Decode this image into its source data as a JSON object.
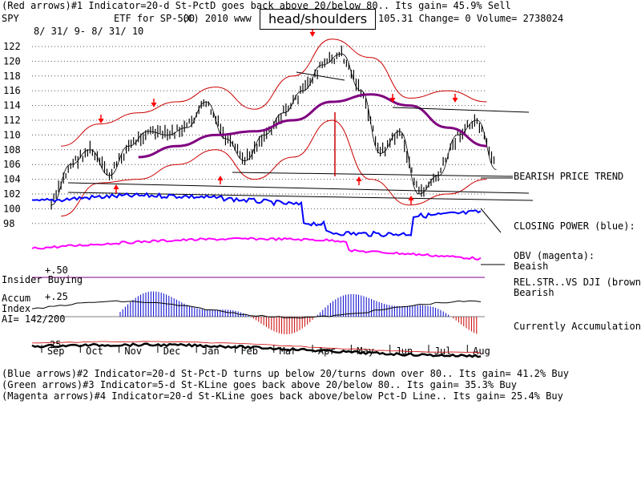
{
  "header": {
    "line1": "(Red arrows)#1 Indicator=20-d St-PctD goes back above 20/below 80.. Its gain= 45.9% Sell",
    "ticker": "SPY",
    "etf": "ETF for SP-500",
    "copyright": "(C) 2010 www",
    "quote": "105.31  Change= 0 Volume= 2738024",
    "dates": "8/ 31/ 9- 8/ 31/ 10",
    "callout": "head/shoulders"
  },
  "right_labels": {
    "trend": "BEARISH PRICE TREND",
    "cp": "CLOSING POWER (blue):",
    "obv_title": "OBV (magenta):",
    "obv_value": "Beaish",
    "rel_title": "REL.STR..VS DJI (brown):",
    "rel_value": "Bearish",
    "accum": "Currently Accumulation"
  },
  "left_labels": {
    "insider": "Insider Buying",
    "p50": "+.50",
    "p25": "+.25",
    "accum1": "Accum",
    "accum2": "Index",
    "ai": "AI= 142/200",
    "rs25": "25"
  },
  "footer": {
    "line1": "(Blue arrows)#2 Indicator=20-d St-Pct-D turns up below 20/turns down over 80.. Its gain= 41.2% Buy",
    "line2": "(Green arrows)#3 Indicator=5-d St-KLine goes back above 20/below 80.. Its gain= 35.3% Buy",
    "line3": "(Magenta arrows)#4 Indicator=20-d St-KLine goes back above/below Pct-D Line.. Its gain= 25.4% Buy"
  },
  "chart_data": {
    "type": "line",
    "title": "SPY",
    "xlabel": "",
    "ylabel": "",
    "ylim": [
      98,
      123
    ],
    "yticks": [
      122,
      120,
      118,
      116,
      114,
      112,
      110,
      108,
      106,
      104,
      102,
      100,
      98
    ],
    "xticks": [
      "Sep",
      "Oct",
      "Nov",
      "Dec",
      "Jan",
      "Feb",
      "Mar",
      "Apr",
      "May",
      "Jun",
      "Jul",
      "Aug"
    ],
    "grid": true,
    "colors": {
      "price": "#000000",
      "bands": "#cc0000",
      "ma": "#800080",
      "closing_power": "#0000ff",
      "obv": "#ff00ff",
      "accum_pos": "#0000cc",
      "accum_neg": "#cc0000",
      "rel_strength": "#000000",
      "arrow": "#ff0000"
    },
    "series": [
      {
        "key": "close",
        "x": [
          "Sep",
          "Sep",
          "Oct",
          "Oct",
          "Nov",
          "Nov",
          "Dec",
          "Dec",
          "Jan",
          "Jan",
          "Feb",
          "Feb",
          "Mar",
          "Mar",
          "Apr",
          "Apr",
          "May",
          "May",
          "Jun",
          "Jun",
          "Jul",
          "Jul",
          "Aug",
          "Aug"
        ],
        "values": [
          100.5,
          106.0,
          108.0,
          104.5,
          108.5,
          110.5,
          110.0,
          111.0,
          114.5,
          109.5,
          106.5,
          110.0,
          113.0,
          116.0,
          119.5,
          121.0,
          116.0,
          107.5,
          110.5,
          102.0,
          104.5,
          110.0,
          112.0,
          105.3
        ]
      },
      {
        "key": "ma",
        "x": [
          "Nov",
          "Dec",
          "Jan",
          "Feb",
          "Mar",
          "Apr",
          "May",
          "Jun",
          "Jul",
          "Aug"
        ],
        "values": [
          107.0,
          108.5,
          110.0,
          110.5,
          112.0,
          114.5,
          115.5,
          114.0,
          111.0,
          108.5
        ]
      },
      {
        "key": "upper_band",
        "x": [
          "Sep",
          "Oct",
          "Nov",
          "Dec",
          "Jan",
          "Feb",
          "Mar",
          "Apr",
          "May",
          "Jun",
          "Jul",
          "Aug"
        ],
        "values": [
          108.5,
          111.5,
          113.0,
          114.5,
          116.5,
          113.5,
          118.0,
          123.0,
          120.5,
          115.0,
          116.0,
          114.5
        ]
      },
      {
        "key": "lower_band",
        "x": [
          "Sep",
          "Oct",
          "Nov",
          "Dec",
          "Jan",
          "Feb",
          "Mar",
          "Apr",
          "May",
          "Jun",
          "Jul",
          "Aug"
        ],
        "values": [
          99.0,
          103.5,
          104.0,
          106.0,
          108.0,
          104.0,
          107.0,
          112.0,
          104.0,
          100.5,
          102.0,
          104.0
        ]
      }
    ],
    "annotations": [
      "head/shoulders",
      "BEARISH PRICE TREND"
    ]
  }
}
